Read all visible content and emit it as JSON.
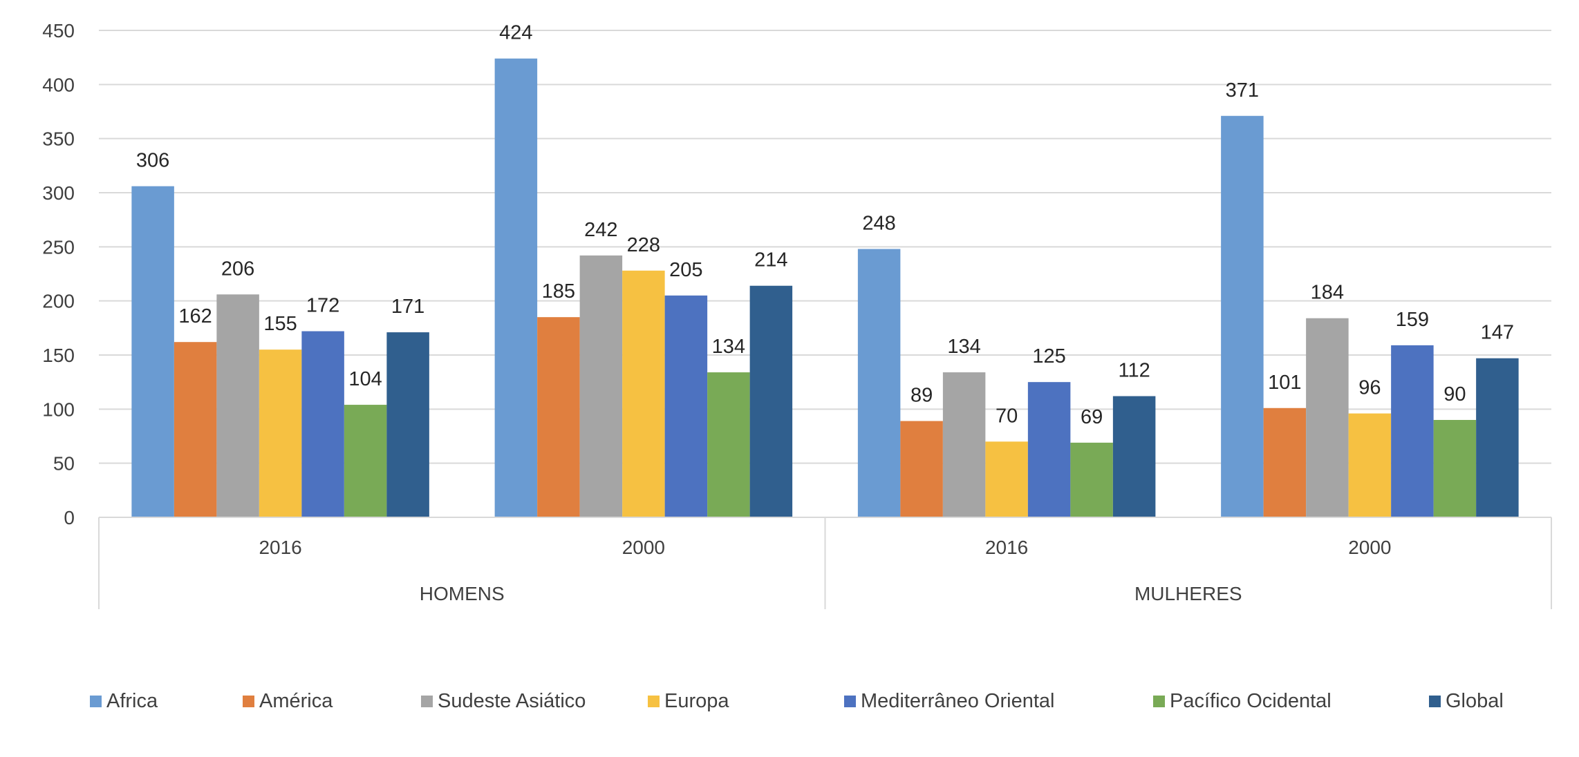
{
  "chart_data": {
    "type": "bar",
    "title": "",
    "xlabel": "",
    "ylabel": "",
    "ylim": [
      0,
      450
    ],
    "yticks": [
      0,
      50,
      100,
      150,
      200,
      250,
      300,
      350,
      400,
      450
    ],
    "grid": true,
    "legend_position": "bottom",
    "groups": [
      {
        "label": "HOMENS",
        "categories": [
          "2016",
          "2000"
        ]
      },
      {
        "label": "MULHERES",
        "categories": [
          "2016",
          "2000"
        ]
      }
    ],
    "series": [
      {
        "name": "Africa",
        "color": "#6a9bd2",
        "values": [
          306,
          424,
          248,
          371
        ]
      },
      {
        "name": "América",
        "color": "#e07f3f",
        "values": [
          162,
          185,
          89,
          101
        ]
      },
      {
        "name": "Sudeste Asiático",
        "color": "#a5a5a5",
        "values": [
          206,
          242,
          134,
          184
        ]
      },
      {
        "name": "Europa",
        "color": "#f6c142",
        "values": [
          155,
          228,
          70,
          96
        ]
      },
      {
        "name": "Mediterrâneo Oriental",
        "color": "#4d72c0",
        "values": [
          172,
          205,
          125,
          159
        ]
      },
      {
        "name": "Pacífico Ocidental",
        "color": "#79aa56",
        "values": [
          104,
          134,
          69,
          90
        ]
      },
      {
        "name": "Global",
        "color": "#305f8e",
        "values": [
          171,
          214,
          112,
          147
        ]
      }
    ]
  }
}
